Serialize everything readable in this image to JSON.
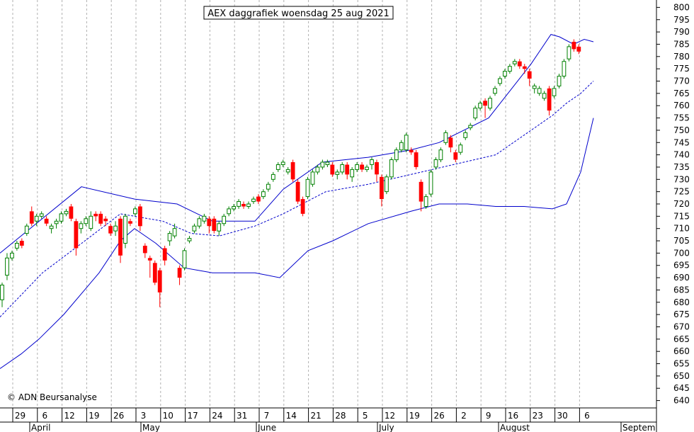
{
  "chart_data": {
    "type": "candlestick",
    "title": "AEX daggrafiek woensdag 25 aug 2021",
    "copyright": "© ADN Beursanalyse",
    "ylim": [
      637,
      803
    ],
    "yticks": [
      640,
      645,
      650,
      655,
      660,
      665,
      670,
      675,
      680,
      685,
      690,
      695,
      700,
      705,
      710,
      715,
      720,
      725,
      730,
      735,
      740,
      745,
      750,
      755,
      760,
      765,
      770,
      775,
      780,
      785,
      790,
      795,
      800
    ],
    "grid": true,
    "x_tick_labels": [
      "29",
      "6",
      "12",
      "19",
      "26",
      "3",
      "10",
      "17",
      "24",
      "31",
      "7",
      "14",
      "21",
      "28",
      "5",
      "12",
      "19",
      "26",
      "2",
      "9",
      "16",
      "23",
      "30",
      "6"
    ],
    "month_labels": [
      "April",
      "May",
      "June",
      "July",
      "August",
      "Septem"
    ],
    "colors": {
      "up": "#008000",
      "down": "#ff0000",
      "bands": "#0000cc",
      "grid": "#b0b0b0"
    },
    "candles": [
      [
        681,
        687,
        678,
        688
      ],
      [
        691,
        698,
        689,
        700
      ],
      [
        698,
        700,
        697,
        701
      ],
      [
        702,
        704,
        701,
        705
      ],
      [
        705,
        703,
        702,
        706
      ],
      [
        708,
        711,
        707,
        712
      ],
      [
        717,
        712,
        711,
        719
      ],
      [
        713,
        715,
        711,
        716
      ],
      [
        715,
        716,
        714,
        717
      ],
      [
        714,
        712,
        711,
        715
      ],
      [
        710,
        711,
        708,
        712
      ],
      [
        712,
        713,
        710,
        714
      ],
      [
        713,
        716,
        712,
        717
      ],
      [
        716,
        717,
        715,
        718
      ],
      [
        719,
        714,
        713,
        720
      ],
      [
        713,
        702,
        699,
        714
      ],
      [
        710,
        712,
        708,
        713
      ],
      [
        712,
        714,
        711,
        715
      ],
      [
        710,
        715,
        709,
        717
      ],
      [
        716,
        715,
        713,
        717
      ],
      [
        716,
        712,
        711,
        717
      ],
      [
        714,
        713,
        711,
        715
      ],
      [
        711,
        708,
        707,
        712
      ],
      [
        709,
        711,
        707,
        713
      ],
      [
        714,
        699,
        696,
        715
      ],
      [
        704,
        715,
        702,
        716
      ],
      [
        713,
        712,
        711,
        714
      ],
      [
        716,
        718,
        715,
        719
      ],
      [
        719,
        711,
        709,
        720
      ],
      [
        703,
        700,
        698,
        704
      ],
      [
        698,
        697,
        690,
        699
      ],
      [
        696,
        688,
        687,
        697
      ],
      [
        693,
        684,
        678,
        694
      ],
      [
        702,
        697,
        695,
        703
      ],
      [
        705,
        708,
        703,
        709
      ],
      [
        707,
        710,
        706,
        712
      ],
      [
        694,
        690,
        687,
        695
      ],
      [
        694,
        701,
        693,
        702
      ],
      [
        705,
        706,
        704,
        707
      ],
      [
        709,
        711,
        708,
        712
      ],
      [
        711,
        714,
        710,
        715
      ],
      [
        713,
        715,
        712,
        716
      ],
      [
        714,
        711,
        708,
        715
      ],
      [
        714,
        709,
        708,
        715
      ],
      [
        709,
        712,
        707,
        713
      ],
      [
        712,
        715,
        711,
        716
      ],
      [
        716,
        718,
        715,
        719
      ],
      [
        718,
        719,
        717,
        720
      ],
      [
        719,
        721,
        718,
        722
      ],
      [
        720,
        719,
        718,
        721
      ],
      [
        719,
        720,
        718,
        721
      ],
      [
        721,
        722,
        720,
        723
      ],
      [
        723,
        721,
        720,
        724
      ],
      [
        723,
        725,
        722,
        726
      ],
      [
        726,
        728,
        725,
        729
      ],
      [
        730,
        732,
        729,
        733
      ],
      [
        734,
        736,
        733,
        737
      ],
      [
        736,
        737,
        735,
        738
      ],
      [
        733,
        734,
        732,
        735
      ],
      [
        737,
        730,
        729,
        738
      ],
      [
        729,
        721,
        720,
        730
      ],
      [
        722,
        716,
        715,
        723
      ],
      [
        723,
        730,
        722,
        731
      ],
      [
        728,
        733,
        727,
        734
      ],
      [
        733,
        735,
        732,
        736
      ],
      [
        735,
        737,
        734,
        738
      ],
      [
        736,
        737,
        735,
        738
      ],
      [
        736,
        732,
        731,
        737
      ],
      [
        732,
        733,
        730,
        734
      ],
      [
        733,
        736,
        732,
        737
      ],
      [
        736,
        732,
        730,
        737
      ],
      [
        731,
        734,
        729,
        735
      ],
      [
        734,
        736,
        733,
        737
      ],
      [
        736,
        734,
        733,
        737
      ],
      [
        734,
        735,
        733,
        736
      ],
      [
        736,
        738,
        734,
        739
      ],
      [
        737,
        732,
        729,
        738
      ],
      [
        731,
        722,
        719,
        732
      ],
      [
        725,
        731,
        724,
        732
      ],
      [
        731,
        738,
        730,
        739
      ],
      [
        738,
        742,
        737,
        743
      ],
      [
        742,
        745,
        741,
        746
      ],
      [
        742,
        748,
        741,
        749
      ],
      [
        742,
        741,
        740,
        743
      ],
      [
        741,
        735,
        734,
        742
      ],
      [
        729,
        721,
        717,
        730
      ],
      [
        719,
        723,
        718,
        724
      ],
      [
        724,
        733,
        723,
        734
      ],
      [
        735,
        738,
        734,
        739
      ],
      [
        738,
        742,
        737,
        743
      ],
      [
        745,
        749,
        744,
        750
      ],
      [
        747,
        743,
        741,
        748
      ],
      [
        741,
        738,
        737,
        742
      ],
      [
        741,
        744,
        740,
        745
      ],
      [
        747,
        749,
        746,
        750
      ],
      [
        751,
        752,
        750,
        753
      ],
      [
        755,
        759,
        754,
        760
      ],
      [
        759,
        761,
        758,
        762
      ],
      [
        762,
        760,
        755,
        763
      ],
      [
        759,
        763,
        758,
        764
      ],
      [
        765,
        767,
        764,
        768
      ],
      [
        769,
        771,
        768,
        772
      ],
      [
        772,
        774,
        771,
        775
      ],
      [
        774,
        776,
        773,
        777
      ],
      [
        777,
        778,
        776,
        779
      ],
      [
        778,
        776,
        775,
        779
      ],
      [
        776,
        775,
        773,
        777
      ],
      [
        774,
        771,
        768,
        775
      ],
      [
        767,
        768,
        765,
        769
      ],
      [
        765,
        767,
        764,
        768
      ],
      [
        763,
        765,
        762,
        766
      ],
      [
        767,
        758,
        756,
        768
      ],
      [
        764,
        767,
        763,
        768
      ],
      [
        768,
        772,
        767,
        773
      ],
      [
        772,
        778,
        771,
        779
      ],
      [
        779,
        784,
        778,
        785
      ],
      [
        786,
        783,
        782,
        787
      ],
      [
        784,
        782,
        781,
        785
      ]
    ],
    "bollinger": {
      "upper": [
        [
          0,
          700
        ],
        [
          115,
          727
        ],
        [
          190,
          722
        ],
        [
          250,
          720
        ],
        [
          300,
          713
        ],
        [
          360,
          713
        ],
        [
          400,
          726
        ],
        [
          455,
          737
        ],
        [
          520,
          739
        ],
        [
          580,
          742
        ],
        [
          620,
          745
        ],
        [
          690,
          755
        ],
        [
          750,
          777
        ],
        [
          778,
          789
        ],
        [
          790,
          788
        ],
        [
          810,
          785
        ],
        [
          825,
          787
        ],
        [
          838,
          786
        ]
      ],
      "middle": [
        [
          0,
          674
        ],
        [
          60,
          692
        ],
        [
          120,
          705
        ],
        [
          170,
          716
        ],
        [
          230,
          713
        ],
        [
          270,
          708
        ],
        [
          310,
          707
        ],
        [
          360,
          711
        ],
        [
          400,
          716
        ],
        [
          460,
          725
        ],
        [
          520,
          728
        ],
        [
          580,
          732
        ],
        [
          640,
          736
        ],
        [
          700,
          740
        ],
        [
          750,
          750
        ],
        [
          780,
          756
        ],
        [
          800,
          761
        ],
        [
          820,
          765
        ],
        [
          838,
          770
        ]
      ],
      "lower": [
        [
          0,
          653
        ],
        [
          30,
          659
        ],
        [
          55,
          665
        ],
        [
          90,
          675
        ],
        [
          140,
          692
        ],
        [
          170,
          705
        ],
        [
          190,
          710
        ],
        [
          220,
          704
        ],
        [
          260,
          694
        ],
        [
          300,
          692
        ],
        [
          360,
          692
        ],
        [
          395,
          690
        ],
        [
          435,
          701
        ],
        [
          470,
          705
        ],
        [
          520,
          712
        ],
        [
          580,
          717
        ],
        [
          620,
          720
        ],
        [
          660,
          720
        ],
        [
          700,
          719
        ],
        [
          740,
          719
        ],
        [
          780,
          718
        ],
        [
          800,
          720
        ],
        [
          820,
          733
        ],
        [
          838,
          755
        ]
      ]
    }
  }
}
